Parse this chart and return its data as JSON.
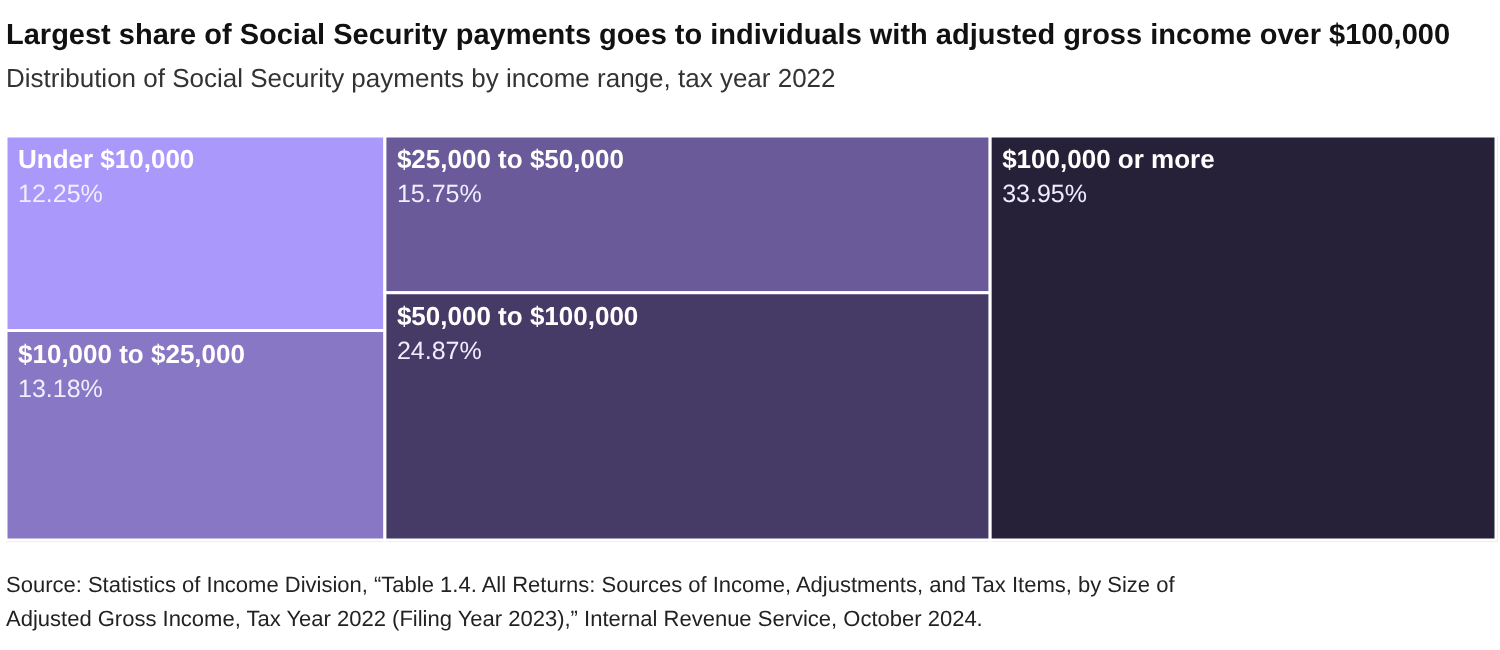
{
  "chart_data": {
    "type": "other",
    "title": "Largest share of Social Security payments goes to individuals with adjusted gross income over $100,000",
    "subtitle": "Distribution of Social Security payments by income range, tax year 2022",
    "categories": [
      "Under $10,000",
      "$10,000 to $25,000",
      "$25,000 to $50,000",
      "$50,000 to $100,000",
      "$100,000 or more"
    ],
    "values": [
      12.25,
      13.18,
      15.75,
      24.87,
      33.95
    ],
    "value_labels": [
      "12.25%",
      "13.18%",
      "15.75%",
      "24.87%",
      "33.95%"
    ],
    "colors": [
      "#ab98fb",
      "#8877c4",
      "#6a5a99",
      "#463a66",
      "#262138"
    ],
    "annotations": [
      "Source: Statistics of Income Division, “Table 1.4. All Returns: Sources of Income, Adjustments, and Tax Items, by Size of Adjusted Gross Income, Tax Year 2022 (Filing Year 2023),” Internal Revenue Service, October 2024."
    ]
  }
}
